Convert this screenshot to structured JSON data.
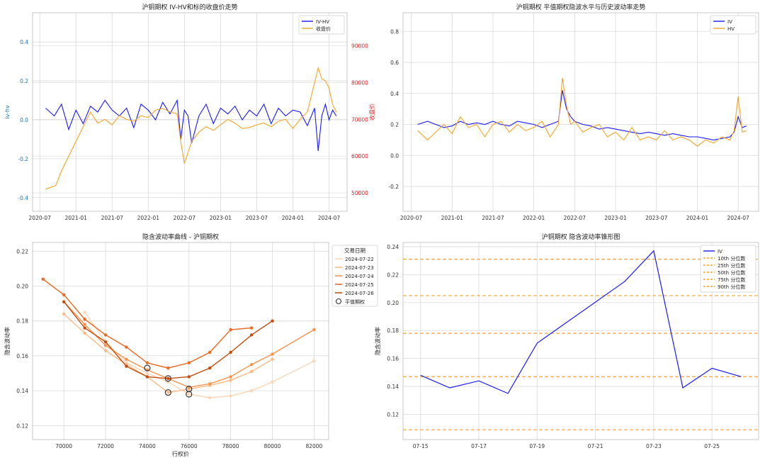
{
  "colors": {
    "blue": "#1a1aff",
    "orange": "#f5a623",
    "red_axis": "#d62728",
    "blue_axis": "#1f77b4",
    "grid": "#d9d9d9",
    "tick": "#333333",
    "iv_curves": [
      "#fdd6b5",
      "#fdba85",
      "#f8924f",
      "#ea6a24",
      "#c54d0f"
    ]
  },
  "chart_data": [
    {
      "id": "tl",
      "type": "line",
      "title": "沪铜期权 IV-HV和标的收盘价走势",
      "xlabel": "",
      "ylabel": "iv-hv",
      "y2label": "收盘价",
      "x_ticks": [
        "2020-07",
        "2021-01",
        "2021-07",
        "2022-01",
        "2022-07",
        "2023-01",
        "2023-07",
        "2024-01",
        "2024-07"
      ],
      "xlim": [
        2020.4,
        2024.75
      ],
      "ylim": [
        -0.47,
        0.55
      ],
      "y_ticks": [
        "-0.4",
        "-0.2",
        "0.0",
        "0.2",
        "0.4"
      ],
      "y_tick_values": [
        -0.4,
        -0.2,
        0.0,
        0.2,
        0.4
      ],
      "y2lim": [
        45000,
        99000
      ],
      "y2_ticks": [
        "50000",
        "60000",
        "70000",
        "80000",
        "90000"
      ],
      "y2_tick_values": [
        50000,
        60000,
        70000,
        80000,
        90000
      ],
      "legend": [
        "IV-HV",
        "收盘价"
      ],
      "legend_position": "upper right",
      "series": [
        {
          "name": "IV-HV",
          "axis": "left",
          "x": [
            2020.58,
            2020.7,
            2020.8,
            2020.9,
            2021.0,
            2021.1,
            2021.2,
            2021.3,
            2021.4,
            2021.5,
            2021.6,
            2021.7,
            2021.8,
            2021.9,
            2022.0,
            2022.1,
            2022.2,
            2022.3,
            2022.4,
            2022.45,
            2022.5,
            2022.55,
            2022.6,
            2022.7,
            2022.8,
            2022.9,
            2023.0,
            2023.1,
            2023.2,
            2023.3,
            2023.4,
            2023.5,
            2023.6,
            2023.7,
            2023.8,
            2023.9,
            2024.0,
            2024.1,
            2024.2,
            2024.3,
            2024.35,
            2024.4,
            2024.45,
            2024.5,
            2024.55,
            2024.6
          ],
          "values": [
            0.06,
            0.02,
            0.08,
            -0.05,
            0.05,
            -0.02,
            0.07,
            0.04,
            0.1,
            0.05,
            0.02,
            0.06,
            -0.04,
            0.08,
            0.05,
            0.0,
            0.09,
            0.03,
            0.1,
            -0.1,
            0.05,
            0.02,
            -0.12,
            0.02,
            0.08,
            -0.02,
            0.06,
            0.03,
            0.07,
            0.0,
            0.05,
            0.02,
            0.08,
            -0.02,
            0.06,
            0.02,
            0.05,
            0.04,
            -0.03,
            0.06,
            -0.16,
            0.02,
            0.08,
            0.0,
            0.05,
            0.02
          ]
        },
        {
          "name": "收盘价",
          "axis": "right",
          "x": [
            2020.58,
            2020.65,
            2020.72,
            2020.8,
            2020.9,
            2021.0,
            2021.1,
            2021.2,
            2021.3,
            2021.4,
            2021.5,
            2021.6,
            2021.7,
            2021.8,
            2021.9,
            2022.0,
            2022.1,
            2022.2,
            2022.3,
            2022.4,
            2022.45,
            2022.5,
            2022.55,
            2022.6,
            2022.7,
            2022.8,
            2022.9,
            2023.0,
            2023.1,
            2023.2,
            2023.3,
            2023.4,
            2023.5,
            2023.6,
            2023.7,
            2023.8,
            2023.9,
            2024.0,
            2024.1,
            2024.2,
            2024.3,
            2024.35,
            2024.4,
            2024.45,
            2024.5,
            2024.55,
            2024.6
          ],
          "values": [
            51000,
            51500,
            52000,
            56000,
            60000,
            64000,
            68000,
            72000,
            69000,
            70000,
            68500,
            71000,
            70000,
            69500,
            71000,
            70500,
            72500,
            73000,
            72000,
            71500,
            64000,
            58000,
            61000,
            64000,
            66500,
            68000,
            67000,
            68500,
            70000,
            69000,
            67500,
            67800,
            68500,
            69000,
            68000,
            69500,
            70000,
            67500,
            70000,
            72000,
            80000,
            84000,
            81000,
            80500,
            78500,
            74000,
            72000
          ]
        }
      ]
    },
    {
      "id": "tr",
      "type": "line",
      "title": "沪铜期权 平值期权隐波水平与历史波动率走势",
      "xlabel": "",
      "ylabel": "",
      "x_ticks": [
        "2020-07",
        "2021-01",
        "2021-07",
        "2022-01",
        "2022-07",
        "2023-01",
        "2023-07",
        "2024-01",
        "2024-07"
      ],
      "xlim": [
        2020.4,
        2024.75
      ],
      "ylim": [
        -0.36,
        0.92
      ],
      "y_ticks": [
        "-0.2",
        "0.0",
        "0.2",
        "0.4",
        "0.6",
        "0.8"
      ],
      "y_tick_values": [
        -0.2,
        0.0,
        0.2,
        0.4,
        0.6,
        0.8
      ],
      "legend": [
        "IV",
        "HV"
      ],
      "legend_position": "upper right",
      "series": [
        {
          "name": "IV",
          "x": [
            2020.58,
            2020.7,
            2020.8,
            2020.9,
            2021.0,
            2021.1,
            2021.2,
            2021.3,
            2021.4,
            2021.5,
            2021.6,
            2021.7,
            2021.8,
            2021.9,
            2022.0,
            2022.1,
            2022.2,
            2022.3,
            2022.35,
            2022.4,
            2022.45,
            2022.5,
            2022.6,
            2022.7,
            2022.8,
            2022.9,
            2023.0,
            2023.1,
            2023.2,
            2023.3,
            2023.4,
            2023.5,
            2023.6,
            2023.7,
            2023.8,
            2023.9,
            2024.0,
            2024.1,
            2024.2,
            2024.3,
            2024.4,
            2024.45,
            2024.5,
            2024.55,
            2024.6
          ],
          "values": [
            0.2,
            0.22,
            0.2,
            0.18,
            0.19,
            0.22,
            0.2,
            0.21,
            0.2,
            0.22,
            0.2,
            0.19,
            0.22,
            0.21,
            0.2,
            0.18,
            0.2,
            0.22,
            0.42,
            0.3,
            0.25,
            0.22,
            0.2,
            0.19,
            0.17,
            0.18,
            0.17,
            0.16,
            0.15,
            0.14,
            0.15,
            0.14,
            0.13,
            0.14,
            0.13,
            0.12,
            0.12,
            0.11,
            0.1,
            0.11,
            0.12,
            0.15,
            0.25,
            0.18,
            0.19
          ]
        },
        {
          "name": "HV",
          "x": [
            2020.58,
            2020.7,
            2020.8,
            2020.9,
            2021.0,
            2021.1,
            2021.2,
            2021.3,
            2021.4,
            2021.5,
            2021.6,
            2021.7,
            2021.8,
            2021.9,
            2022.0,
            2022.1,
            2022.2,
            2022.3,
            2022.35,
            2022.4,
            2022.45,
            2022.5,
            2022.6,
            2022.7,
            2022.8,
            2022.9,
            2023.0,
            2023.1,
            2023.2,
            2023.3,
            2023.4,
            2023.5,
            2023.6,
            2023.7,
            2023.8,
            2023.9,
            2024.0,
            2024.1,
            2024.2,
            2024.3,
            2024.4,
            2024.45,
            2024.5,
            2024.55,
            2024.6
          ],
          "values": [
            0.16,
            0.1,
            0.15,
            0.2,
            0.14,
            0.25,
            0.18,
            0.2,
            0.12,
            0.2,
            0.22,
            0.15,
            0.2,
            0.16,
            0.18,
            0.22,
            0.12,
            0.2,
            0.5,
            0.32,
            0.2,
            0.22,
            0.15,
            0.18,
            0.2,
            0.12,
            0.15,
            0.1,
            0.18,
            0.1,
            0.12,
            0.1,
            0.16,
            0.1,
            0.12,
            0.1,
            0.06,
            0.1,
            0.08,
            0.12,
            0.1,
            0.16,
            0.38,
            0.15,
            0.16
          ]
        }
      ]
    },
    {
      "id": "bl",
      "type": "line",
      "title": "隐含波动率曲线 - 沪铜期权",
      "xlabel": "行权价",
      "ylabel": "隐含波动率",
      "xlim": [
        68500,
        82700
      ],
      "x_ticks": [
        "70000",
        "72000",
        "74000",
        "76000",
        "78000",
        "80000",
        "82000"
      ],
      "x_tick_values": [
        70000,
        72000,
        74000,
        76000,
        78000,
        80000,
        82000
      ],
      "ylim": [
        0.112,
        0.225
      ],
      "y_ticks": [
        "0.12",
        "0.14",
        "0.16",
        "0.18",
        "0.20",
        "0.22"
      ],
      "y_tick_values": [
        0.12,
        0.14,
        0.16,
        0.18,
        0.2,
        0.22
      ],
      "legend_title": "交易日期",
      "legend": [
        "2024-07-22",
        "2024-07-23",
        "2024-07-24",
        "2024-07-25",
        "2024-07-26",
        "平值期权"
      ],
      "legend_position": "upper right (outside)",
      "series": [
        {
          "name": "2024-07-22",
          "x": [
            71000,
            72000,
            73000,
            74000,
            75000,
            76000,
            77000,
            78000,
            79000,
            80000,
            82000
          ],
          "values": [
            0.185,
            0.168,
            0.156,
            0.15,
            0.145,
            0.138,
            0.136,
            0.137,
            0.14,
            0.145,
            0.157
          ]
        },
        {
          "name": "2024-07-23",
          "x": [
            70000,
            71000,
            72000,
            73000,
            74000,
            75000,
            76000,
            77000,
            78000,
            79000,
            80000
          ],
          "values": [
            0.184,
            0.173,
            0.163,
            0.155,
            0.148,
            0.139,
            0.141,
            0.143,
            0.146,
            0.151,
            0.158
          ]
        },
        {
          "name": "2024-07-24",
          "x": [
            70000,
            71000,
            72000,
            73000,
            74000,
            75000,
            76000,
            77000,
            78000,
            79000,
            80000,
            82000
          ],
          "values": [
            0.191,
            0.178,
            0.166,
            0.158,
            0.152,
            0.147,
            0.142,
            0.144,
            0.148,
            0.155,
            0.161,
            0.175
          ]
        },
        {
          "name": "2024-07-25",
          "x": [
            69000,
            70000,
            71000,
            72000,
            73000,
            74000,
            75000,
            76000,
            77000,
            78000,
            79000
          ],
          "values": [
            0.204,
            0.195,
            0.181,
            0.172,
            0.165,
            0.156,
            0.153,
            0.156,
            0.162,
            0.175,
            0.176
          ]
        },
        {
          "name": "2024-07-26",
          "x": [
            70000,
            71000,
            72000,
            73000,
            74000,
            75000,
            76000,
            77000,
            78000,
            79000,
            80000
          ],
          "values": [
            0.191,
            0.176,
            0.168,
            0.154,
            0.148,
            0.147,
            0.148,
            0.153,
            0.162,
            0.172,
            0.18
          ]
        }
      ],
      "atm_points": [
        {
          "x": 74000,
          "y": 0.153
        },
        {
          "x": 75000,
          "y": 0.147
        },
        {
          "x": 75000,
          "y": 0.139
        },
        {
          "x": 76000,
          "y": 0.141
        },
        {
          "x": 76000,
          "y": 0.138
        }
      ]
    },
    {
      "id": "br",
      "type": "line",
      "title": "沪铜期权 隐含波动率锥形图",
      "xlabel": "",
      "ylabel": "隐含波动率",
      "x_ticks": [
        "07-15",
        "07-17",
        "07-19",
        "07-21",
        "07-23",
        "07-25"
      ],
      "x_tick_values": [
        0,
        2,
        4,
        6,
        8,
        10
      ],
      "xlim": [
        -0.6,
        11.6
      ],
      "ylim": [
        0.102,
        0.243
      ],
      "y_ticks": [
        "0.12",
        "0.14",
        "0.16",
        "0.18",
        "0.20",
        "0.22",
        "0.24"
      ],
      "y_tick_values": [
        0.12,
        0.14,
        0.16,
        0.18,
        0.2,
        0.22,
        0.24
      ],
      "legend": [
        "IV",
        "10th 分位数",
        "25th 分位数",
        "50th 分位数",
        "75th 分位数",
        "90th 分位数"
      ],
      "legend_position": "upper right",
      "series": [
        {
          "name": "IV",
          "x": [
            0,
            1,
            2,
            3,
            4,
            7,
            8,
            9,
            10,
            11
          ],
          "values": [
            0.148,
            0.139,
            0.144,
            0.135,
            0.171,
            0.215,
            0.237,
            0.139,
            0.153,
            0.147
          ]
        }
      ],
      "percentiles": [
        {
          "name": "10th 分位数",
          "value": 0.109
        },
        {
          "name": "25th 分位数",
          "value": 0.147
        },
        {
          "name": "50th 分位数",
          "value": 0.178
        },
        {
          "name": "75th 分位数",
          "value": 0.205
        },
        {
          "name": "90th 分位数",
          "value": 0.231
        }
      ]
    }
  ]
}
